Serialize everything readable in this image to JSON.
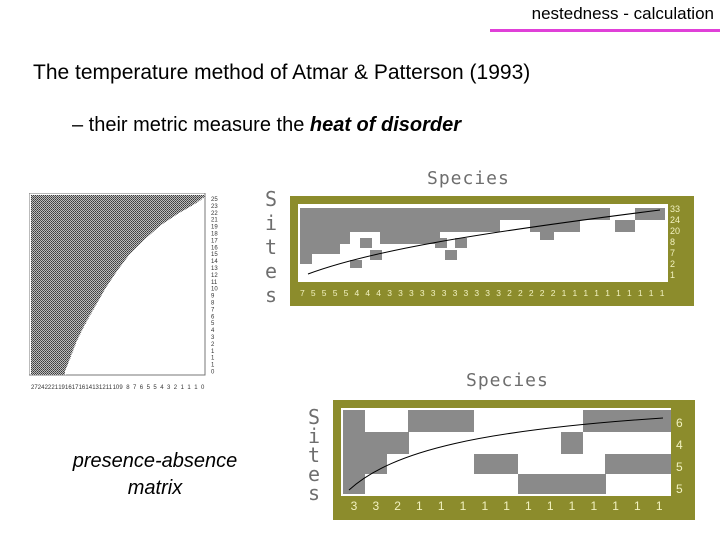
{
  "header": {
    "title": "nestedness - calculation",
    "accent_color": "#e040d8"
  },
  "slide": {
    "title": "The temperature method of Atmar & Patterson (1993)",
    "subtitle_prefix": "– their metric measure the ",
    "subtitle_emphasis": "heat of disorder",
    "caption_line1": "presence-absence",
    "caption_line2": "matrix"
  },
  "large_matrix": {
    "row_labels": [
      "25",
      "23",
      "22",
      "21",
      "19",
      "18",
      "17",
      "16",
      "15",
      "14",
      "13",
      "12",
      "11",
      "10",
      "9",
      "8",
      "7",
      "6",
      "5",
      "4",
      "3",
      "2",
      "1",
      "1",
      "1",
      "0"
    ],
    "bottom_labels": [
      "27",
      "24",
      "22",
      "21",
      "19",
      "16",
      "17",
      "16",
      "14",
      "13",
      "12",
      "11",
      "10",
      "9",
      "8",
      "7",
      "6",
      "5",
      "5",
      "4",
      "3",
      "2",
      "1",
      "1",
      "1",
      "0"
    ]
  },
  "panel_top": {
    "species_label": "Species",
    "sites_label": [
      "S",
      "i",
      "t",
      "e",
      "s"
    ],
    "row_values": [
      "33",
      "24",
      "20",
      "8",
      "7",
      "2",
      "1"
    ],
    "column_values": [
      "7",
      "5",
      "5",
      "5",
      "5",
      "4",
      "4",
      "4",
      "3",
      "3",
      "3",
      "3",
      "3",
      "3",
      "3",
      "3",
      "3",
      "3",
      "3",
      "2",
      "2",
      "2",
      "2",
      "2",
      "1",
      "1",
      "1",
      "1",
      "1",
      "1",
      "1",
      "1",
      "1",
      "1"
    ],
    "frame_color": "#8c8c2c"
  },
  "panel_bottom": {
    "species_label": "Species",
    "sites_label": [
      "S",
      "i",
      "t",
      "e",
      "s"
    ],
    "row_values": [
      "6",
      "4",
      "5",
      "5"
    ],
    "column_values": [
      "3",
      "3",
      "2",
      "1",
      "1",
      "1",
      "1",
      "1",
      "1",
      "1",
      "1",
      "1",
      "1",
      "1",
      "1"
    ],
    "frame_color": "#8c8c2c"
  }
}
